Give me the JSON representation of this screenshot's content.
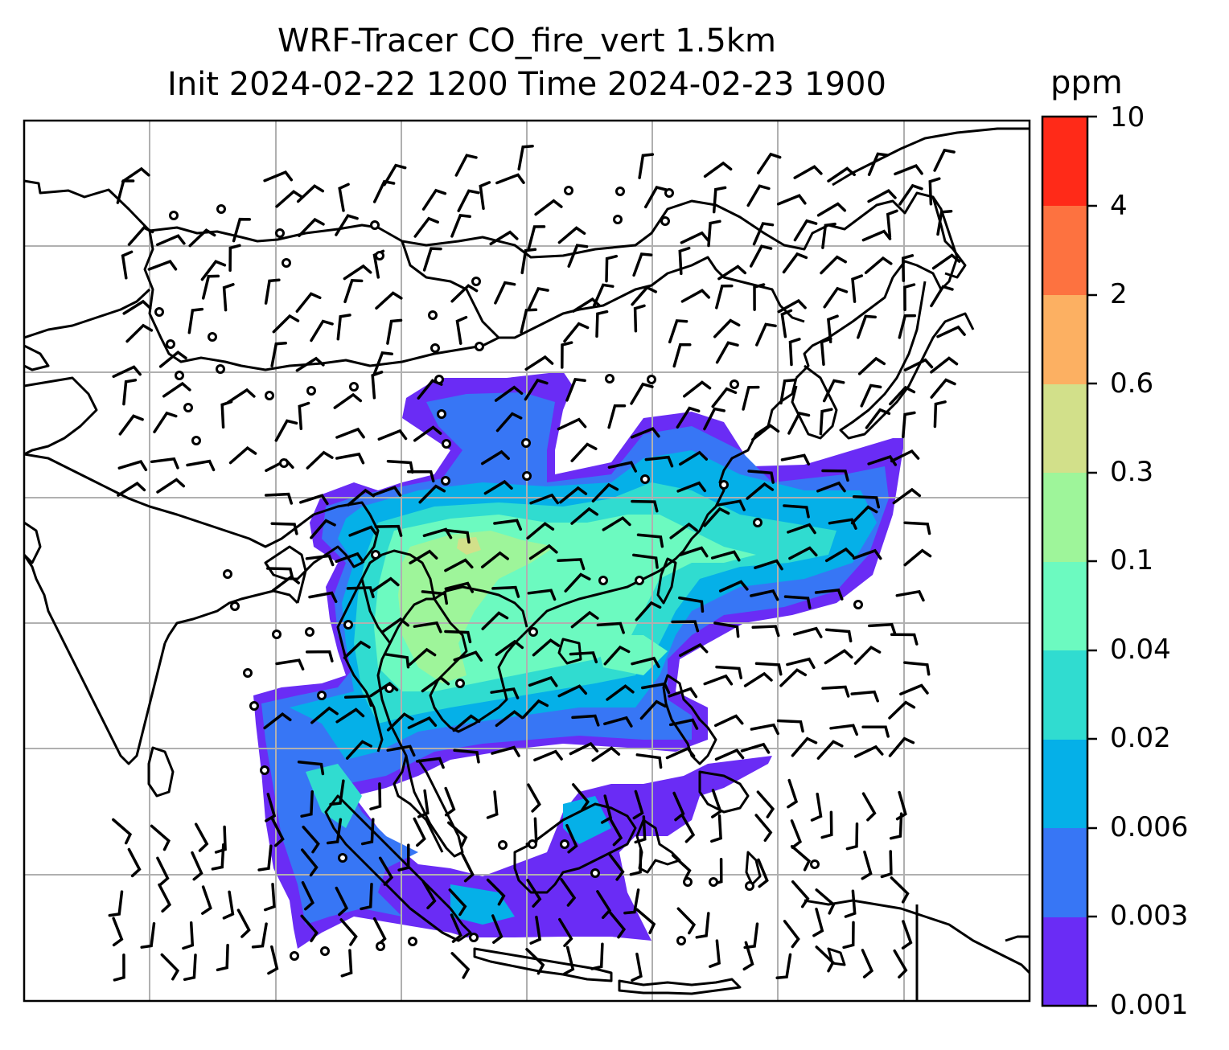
{
  "map": {
    "title_line1": "WRF-Tracer CO_fire_vert 1.5km",
    "title_line2": "Init 2024-02-22 1200 Time 2024-02-23 1900",
    "features": [
      "coastlines",
      "country-borders",
      "lat-lon-gridlines",
      "wind-barbs",
      "calm-wind-circles",
      "tracer-concentration-fill"
    ],
    "gridline_color": "#b0b0b0",
    "coastline_color": "#000000"
  },
  "colorbar": {
    "unit": "ppm",
    "levels": [
      "0.001",
      "0.003",
      "0.006",
      "0.02",
      "0.04",
      "0.1",
      "0.3",
      "0.6",
      "2",
      "4",
      "10"
    ],
    "colors": [
      "#6a2cf5",
      "#3776f5",
      "#05b0e8",
      "#30dcd0",
      "#6cfac0",
      "#9ef59a",
      "#d2e08a",
      "#fcb062",
      "#fd7240",
      "#ff2a18"
    ]
  }
}
